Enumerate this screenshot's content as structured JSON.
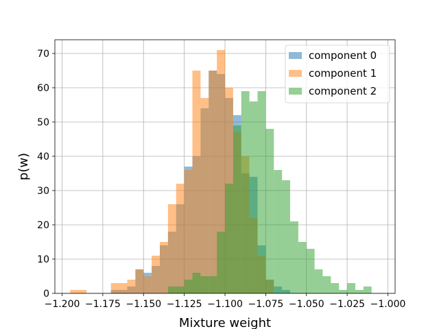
{
  "chart_data": {
    "type": "bar",
    "xlabel": "Mixture weight",
    "ylabel": "p(w)",
    "xlim": [
      -1.2,
      -1.0
    ],
    "ylim": [
      0,
      74
    ],
    "xticks": [
      -1.2,
      -1.175,
      -1.15,
      -1.125,
      -1.1,
      -1.075,
      -1.05,
      -1.025,
      -1.0
    ],
    "xtick_labels": [
      "−1.200",
      "−1.175",
      "−1.150",
      "−1.125",
      "−1.100",
      "−1.075",
      "−1.050",
      "−1.025",
      "−1.000"
    ],
    "yticks": [
      0,
      10,
      20,
      30,
      40,
      50,
      60,
      70
    ],
    "ytick_labels": [
      "0",
      "10",
      "20",
      "30",
      "40",
      "50",
      "60",
      "70"
    ],
    "grid": true,
    "legend_position": "top-right",
    "series": [
      {
        "name": "component 0",
        "color": "#1f77b4",
        "opacity": 0.5,
        "bins": [
          [
            -1.17,
            -1.165,
            1
          ],
          [
            -1.165,
            -1.16,
            1
          ],
          [
            -1.16,
            -1.155,
            2
          ],
          [
            -1.155,
            -1.15,
            7
          ],
          [
            -1.15,
            -1.145,
            6
          ],
          [
            -1.145,
            -1.14,
            8
          ],
          [
            -1.14,
            -1.135,
            14
          ],
          [
            -1.135,
            -1.13,
            18
          ],
          [
            -1.13,
            -1.125,
            26
          ],
          [
            -1.125,
            -1.12,
            37
          ],
          [
            -1.12,
            -1.115,
            40
          ],
          [
            -1.115,
            -1.11,
            54
          ],
          [
            -1.11,
            -1.105,
            65
          ],
          [
            -1.105,
            -1.1,
            64
          ],
          [
            -1.1,
            -1.095,
            57
          ],
          [
            -1.095,
            -1.09,
            52
          ],
          [
            -1.09,
            -1.085,
            35
          ],
          [
            -1.085,
            -1.08,
            34
          ],
          [
            -1.08,
            -1.075,
            14
          ],
          [
            -1.075,
            -1.07,
            4
          ],
          [
            -1.07,
            -1.065,
            2
          ],
          [
            -1.065,
            -1.06,
            1
          ]
        ]
      },
      {
        "name": "component 1",
        "color": "#ff7f0e",
        "opacity": 0.5,
        "bins": [
          [
            -1.195,
            -1.19,
            1
          ],
          [
            -1.19,
            -1.185,
            1
          ],
          [
            -1.17,
            -1.165,
            3
          ],
          [
            -1.165,
            -1.16,
            3
          ],
          [
            -1.16,
            -1.155,
            4
          ],
          [
            -1.155,
            -1.15,
            7
          ],
          [
            -1.15,
            -1.145,
            5
          ],
          [
            -1.145,
            -1.14,
            11
          ],
          [
            -1.14,
            -1.135,
            15
          ],
          [
            -1.135,
            -1.13,
            26
          ],
          [
            -1.13,
            -1.125,
            32
          ],
          [
            -1.125,
            -1.12,
            36
          ],
          [
            -1.12,
            -1.115,
            65
          ],
          [
            -1.115,
            -1.11,
            57
          ],
          [
            -1.11,
            -1.105,
            65
          ],
          [
            -1.105,
            -1.1,
            71
          ],
          [
            -1.1,
            -1.095,
            60
          ],
          [
            -1.095,
            -1.09,
            47
          ],
          [
            -1.09,
            -1.085,
            40
          ],
          [
            -1.085,
            -1.08,
            22
          ],
          [
            -1.08,
            -1.075,
            11
          ],
          [
            -1.075,
            -1.07,
            4
          ]
        ]
      },
      {
        "name": "component 2",
        "color": "#2ca02c",
        "opacity": 0.5,
        "bins": [
          [
            -1.135,
            -1.13,
            2
          ],
          [
            -1.13,
            -1.125,
            2
          ],
          [
            -1.125,
            -1.12,
            4
          ],
          [
            -1.12,
            -1.115,
            6
          ],
          [
            -1.115,
            -1.11,
            5
          ],
          [
            -1.11,
            -1.105,
            5
          ],
          [
            -1.105,
            -1.1,
            18
          ],
          [
            -1.1,
            -1.095,
            32
          ],
          [
            -1.095,
            -1.09,
            49
          ],
          [
            -1.09,
            -1.085,
            59
          ],
          [
            -1.085,
            -1.08,
            56
          ],
          [
            -1.08,
            -1.075,
            59
          ],
          [
            -1.075,
            -1.07,
            48
          ],
          [
            -1.07,
            -1.065,
            36
          ],
          [
            -1.065,
            -1.06,
            33
          ],
          [
            -1.06,
            -1.055,
            21
          ],
          [
            -1.055,
            -1.05,
            15
          ],
          [
            -1.05,
            -1.045,
            13
          ],
          [
            -1.045,
            -1.04,
            7
          ],
          [
            -1.04,
            -1.035,
            5
          ],
          [
            -1.035,
            -1.03,
            3
          ],
          [
            -1.03,
            -1.025,
            1
          ],
          [
            -1.025,
            -1.02,
            3
          ],
          [
            -1.02,
            -1.015,
            1
          ],
          [
            -1.015,
            -1.01,
            2
          ]
        ]
      }
    ]
  }
}
